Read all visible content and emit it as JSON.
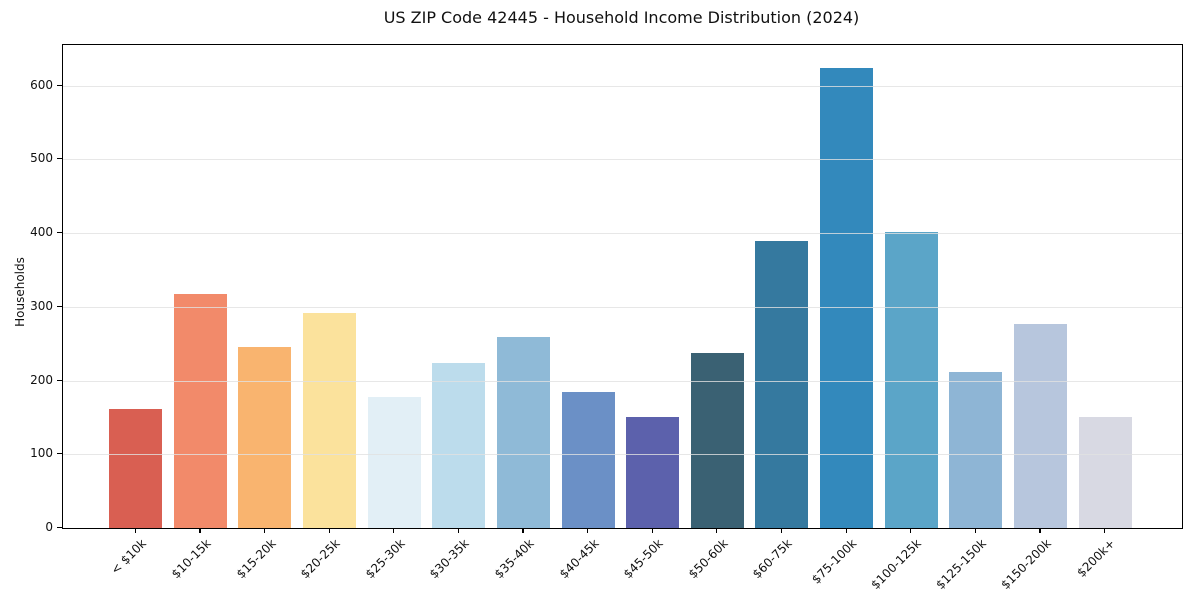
{
  "page": {
    "background": "#ffffff"
  },
  "chart_data": {
    "type": "bar",
    "title": "US ZIP Code 42445 - Household Income Distribution (2024)",
    "xlabel": "",
    "ylabel": "Households",
    "categories": [
      "< $10k",
      "$10-15k",
      "$15-20k",
      "$20-25k",
      "$25-30k",
      "$30-35k",
      "$35-40k",
      "$40-45k",
      "$45-50k",
      "$50-60k",
      "$60-75k",
      "$75-100k",
      "$100-125k",
      "$125-150k",
      "$150-200k",
      "$200k+"
    ],
    "values": [
      161,
      318,
      246,
      291,
      178,
      224,
      259,
      185,
      150,
      237,
      389,
      624,
      402,
      211,
      277,
      150
    ],
    "bar_colors": [
      "#d95f52",
      "#f28a6a",
      "#f9b46f",
      "#fbe29c",
      "#e2eff6",
      "#bcdcec",
      "#8fbad7",
      "#6b90c6",
      "#5c61ac",
      "#3a6173",
      "#35799f",
      "#3389bc",
      "#5ba5c8",
      "#8eb5d5",
      "#b7c6dd",
      "#d8d9e3"
    ],
    "ylim": [
      0,
      655
    ],
    "yticks": [
      0,
      100,
      200,
      300,
      400,
      500,
      600
    ],
    "grid": "horizontal-on-top",
    "gridline_color": "#e5e5e5",
    "legend": "none",
    "spine_color": "#000000"
  }
}
